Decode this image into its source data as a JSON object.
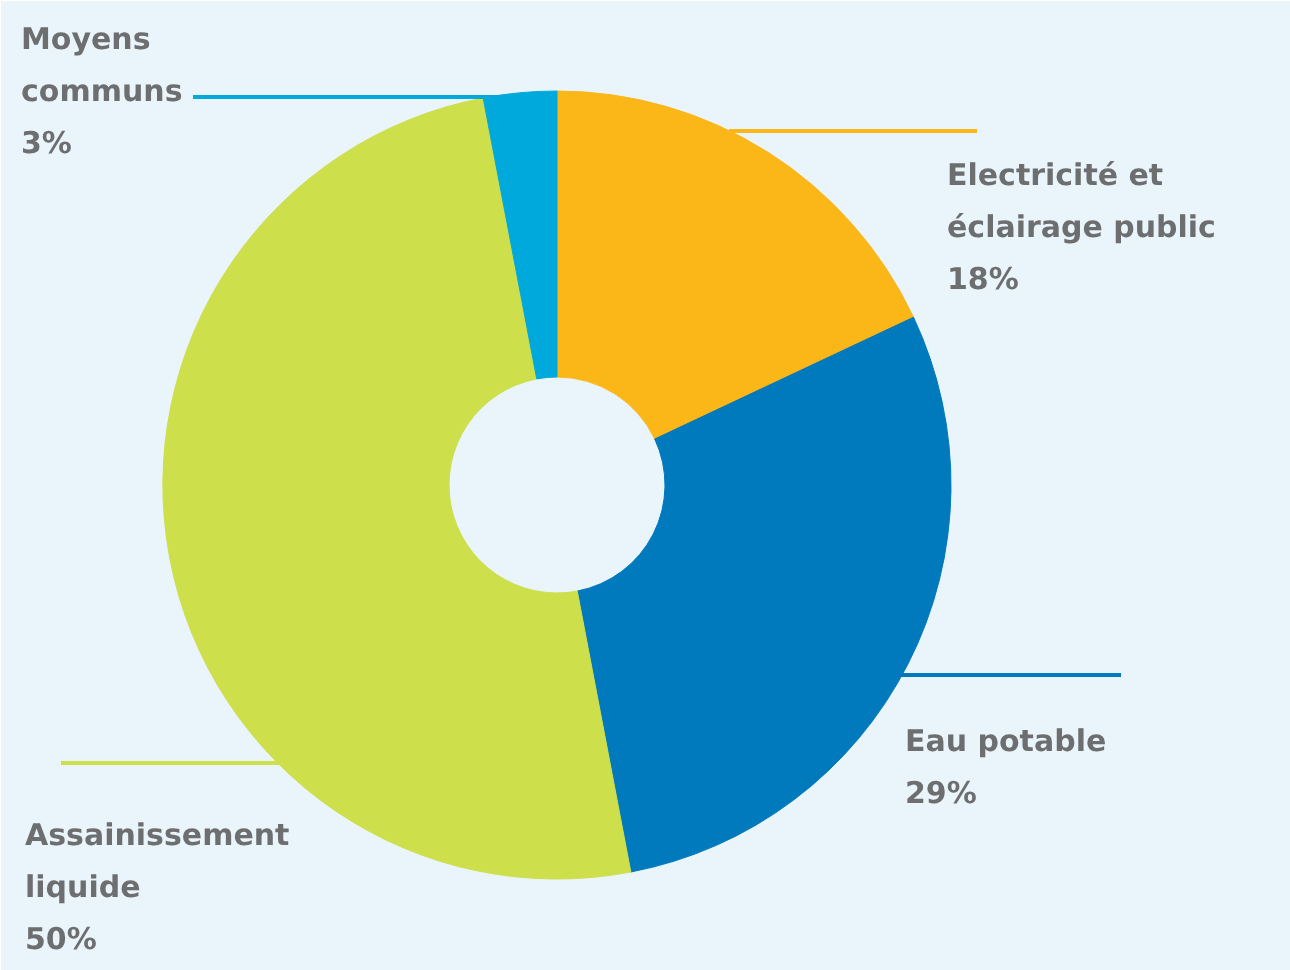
{
  "chart_data": {
    "type": "donut",
    "categories": [
      "Electricité et éclairage public",
      "Eau potable",
      "Assainissement liquide",
      "Moyens communs"
    ],
    "values": [
      18,
      29,
      50,
      3
    ],
    "colors": [
      "#fbb618",
      "#0079bd",
      "#cddf4b",
      "#00a9dc"
    ],
    "value_labels": [
      "18%",
      "29%",
      "50%",
      "3%"
    ]
  }
}
